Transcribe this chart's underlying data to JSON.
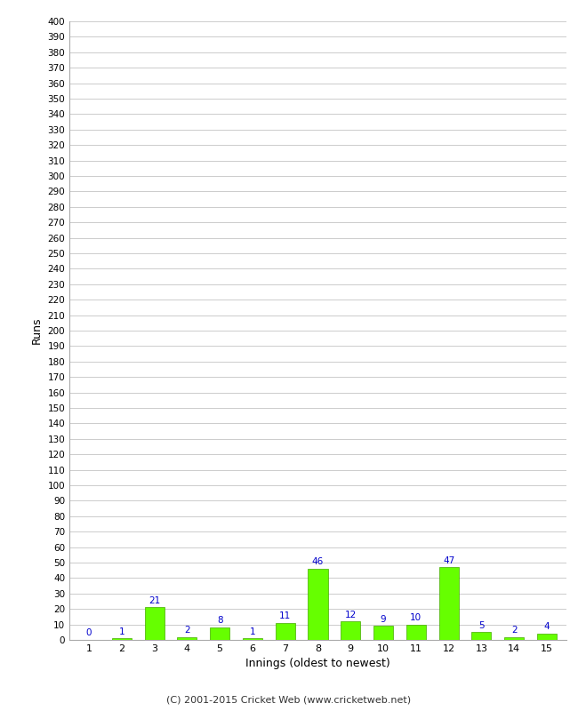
{
  "xlabel": "Innings (oldest to newest)",
  "ylabel": "Runs",
  "categories": [
    1,
    2,
    3,
    4,
    5,
    6,
    7,
    8,
    9,
    10,
    11,
    12,
    13,
    14,
    15
  ],
  "values": [
    0,
    1,
    21,
    2,
    8,
    1,
    11,
    46,
    12,
    9,
    10,
    47,
    5,
    2,
    4
  ],
  "bar_color": "#66ff00",
  "bar_edge_color": "#44aa00",
  "label_color": "#0000cc",
  "ylim": [
    0,
    400
  ],
  "ytick_step": 10,
  "background_color": "#ffffff",
  "grid_color": "#cccccc",
  "footer": "(C) 2001-2015 Cricket Web (www.cricketweb.net)"
}
